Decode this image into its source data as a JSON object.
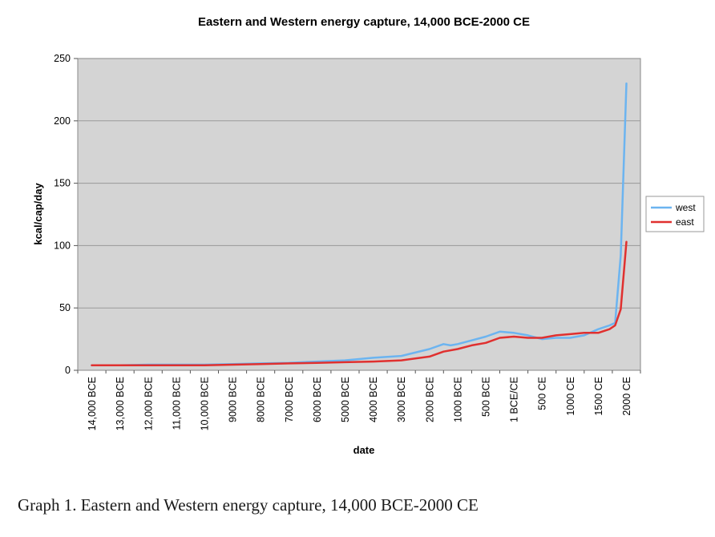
{
  "caption": "Graph 1.  Eastern and Western energy capture, 14,000 BCE-2000 CE",
  "chart_data": {
    "type": "line",
    "title": "Eastern and Western energy capture, 14,000 BCE-2000 CE",
    "xlabel": "date",
    "ylabel": "kcal/cap/day",
    "ylim": [
      0,
      250
    ],
    "yticks": [
      0,
      50,
      100,
      150,
      200,
      250
    ],
    "xlim": [
      -14000,
      2000
    ],
    "xtick_values": [
      -14000,
      -13000,
      -12000,
      -11000,
      -10000,
      -9000,
      -8000,
      -7000,
      -6000,
      -5000,
      -4000,
      -3000,
      -2000,
      -1000,
      -500,
      0,
      500,
      1000,
      1500,
      2000
    ],
    "xtick_labels": [
      "14,000 BCE",
      "13,000 BCE",
      "12,000 BCE",
      "11,000 BCE",
      "10,000 BCE",
      "9000 BCE",
      "8000 BCE",
      "7000 BCE",
      "6000 BCE",
      "5000 BCE",
      "4000 BCE",
      "3000 BCE",
      "2000 BCE",
      "1000 BCE",
      "500 BCE",
      "1 BCE/CE",
      "500 CE",
      "1000 CE",
      "1500 CE",
      "2000 CE"
    ],
    "x_axis_note": "categorical spacing: one column per millennium before 1000 BCE, one per half-millennium after",
    "grid": true,
    "legend_position": "right",
    "series": [
      {
        "name": "west",
        "color": "#6cb4f0",
        "points": [
          [
            -14000,
            4
          ],
          [
            -13000,
            4
          ],
          [
            -12000,
            4.5
          ],
          [
            -11000,
            4.5
          ],
          [
            -10000,
            4.5
          ],
          [
            -9000,
            5
          ],
          [
            -8000,
            5.5
          ],
          [
            -7000,
            6
          ],
          [
            -6000,
            7
          ],
          [
            -5000,
            8
          ],
          [
            -4000,
            10
          ],
          [
            -3000,
            11.5
          ],
          [
            -2000,
            17
          ],
          [
            -1500,
            21
          ],
          [
            -1250,
            20
          ],
          [
            -1000,
            21
          ],
          [
            -750,
            24
          ],
          [
            -500,
            27
          ],
          [
            -250,
            31
          ],
          [
            0,
            30
          ],
          [
            250,
            28
          ],
          [
            500,
            25
          ],
          [
            750,
            26
          ],
          [
            1000,
            26
          ],
          [
            1250,
            28
          ],
          [
            1500,
            33
          ],
          [
            1700,
            36
          ],
          [
            1800,
            38
          ],
          [
            1900,
            92
          ],
          [
            2000,
            230
          ]
        ]
      },
      {
        "name": "east",
        "color": "#e0302f",
        "points": [
          [
            -14000,
            4
          ],
          [
            -13000,
            4
          ],
          [
            -12000,
            4
          ],
          [
            -11000,
            4
          ],
          [
            -10000,
            4
          ],
          [
            -9000,
            4.5
          ],
          [
            -8000,
            5
          ],
          [
            -7000,
            5.5
          ],
          [
            -6000,
            6
          ],
          [
            -5000,
            6.5
          ],
          [
            -4000,
            7
          ],
          [
            -3000,
            8
          ],
          [
            -2000,
            11
          ],
          [
            -1500,
            15
          ],
          [
            -1000,
            17
          ],
          [
            -750,
            20
          ],
          [
            -500,
            22
          ],
          [
            -250,
            26
          ],
          [
            0,
            27
          ],
          [
            250,
            26
          ],
          [
            500,
            26
          ],
          [
            750,
            28
          ],
          [
            1000,
            29
          ],
          [
            1250,
            30
          ],
          [
            1500,
            30
          ],
          [
            1700,
            33
          ],
          [
            1800,
            36
          ],
          [
            1900,
            49
          ],
          [
            2000,
            103
          ]
        ]
      }
    ]
  }
}
